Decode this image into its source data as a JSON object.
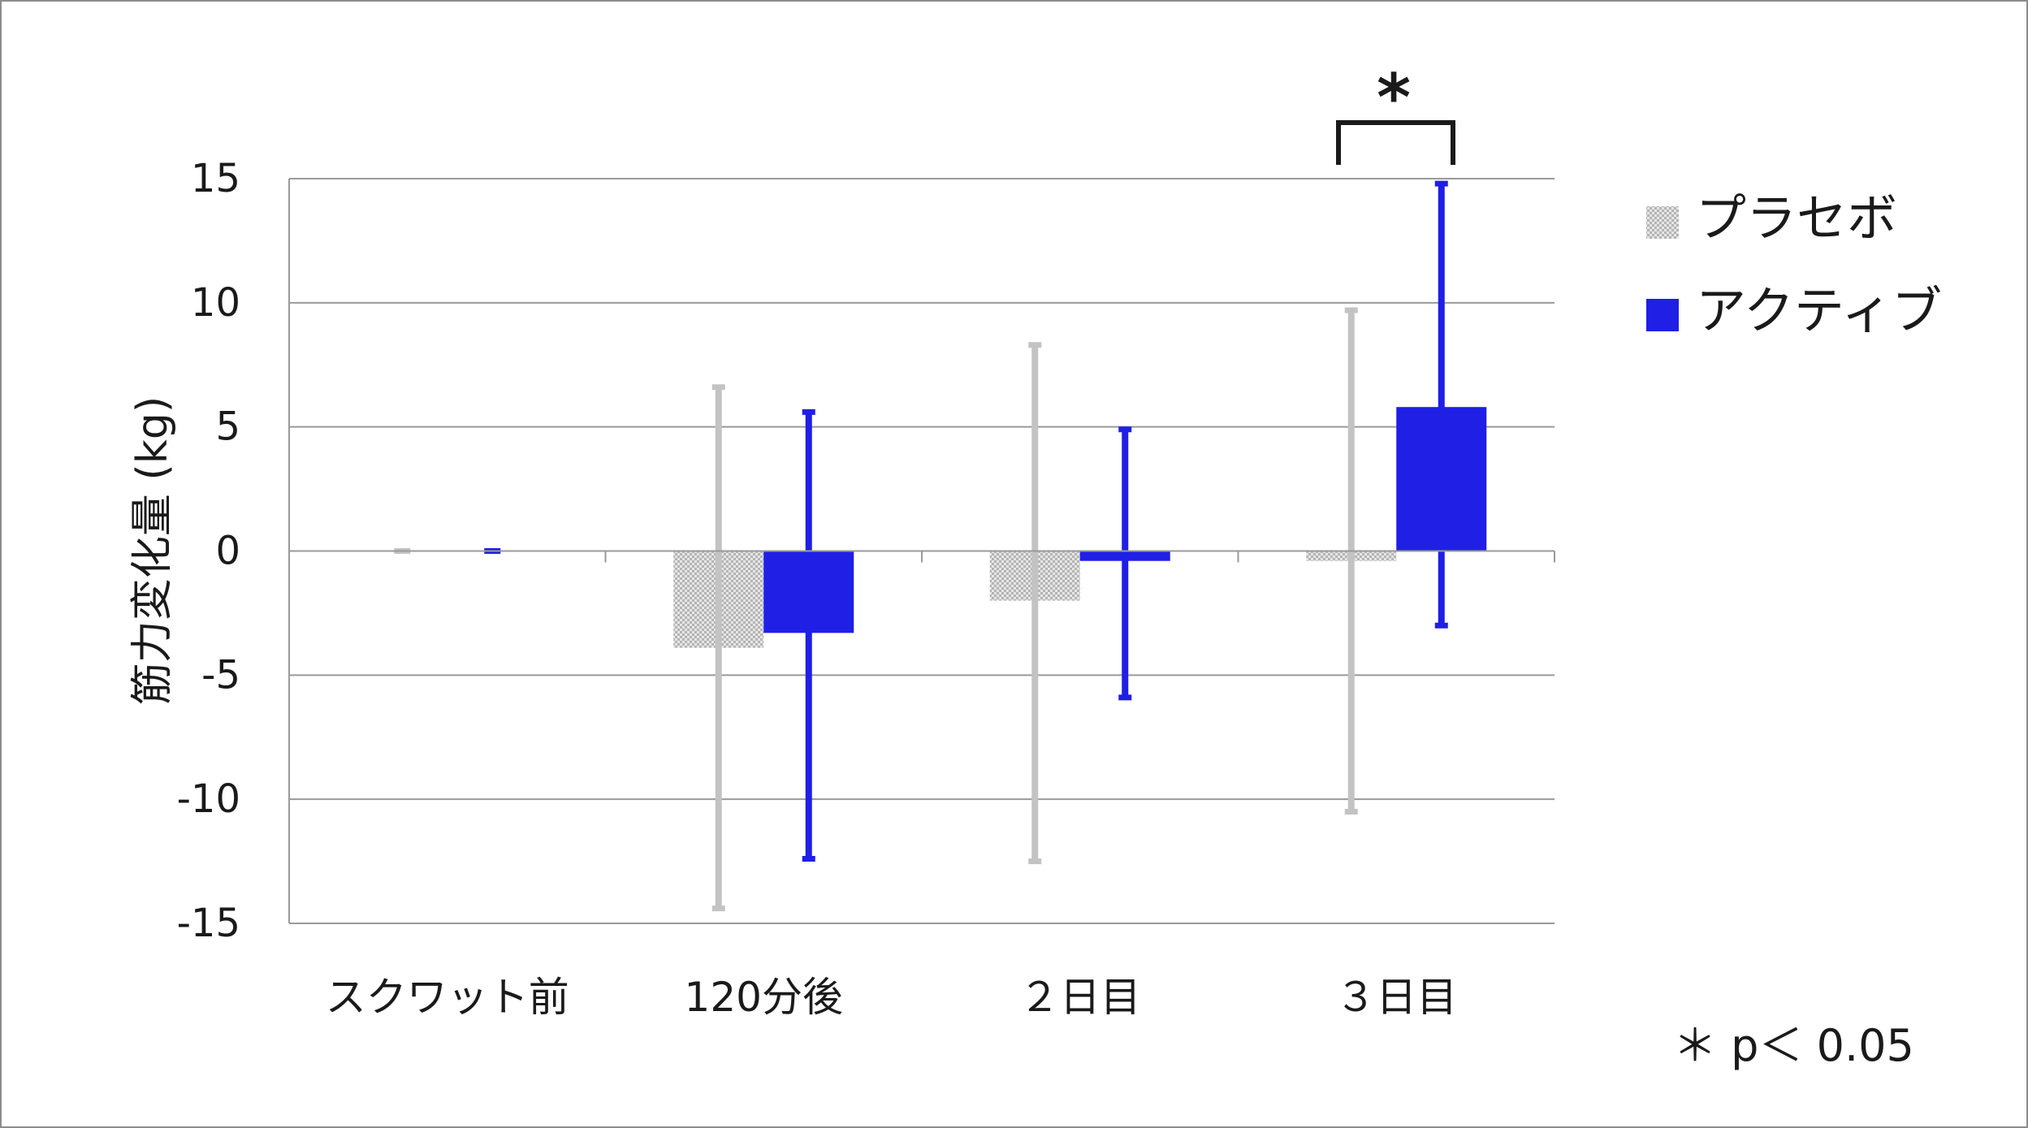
{
  "chart_data": {
    "type": "bar",
    "ylabel": "筋力変化量 (kg)",
    "ylim": [
      -15,
      15
    ],
    "yticks": [
      "15",
      "10",
      "5",
      "0",
      "-5",
      "-10",
      "-15"
    ],
    "categories": [
      "スクワット前",
      "120分後",
      "２日目",
      "３日目"
    ],
    "series": [
      {
        "name": "プラセボ",
        "color": "#c8c8c8",
        "values": [
          0,
          -3.9,
          -2.0,
          -0.4
        ],
        "error_low": [
          0,
          -14.4,
          -12.5,
          -10.5
        ],
        "error_high": [
          0,
          6.6,
          8.3,
          9.7
        ]
      },
      {
        "name": "アクティブ",
        "color": "#1f1fe6",
        "values": [
          0,
          -3.3,
          -0.4,
          5.8
        ],
        "error_low": [
          0,
          -12.4,
          -5.9,
          -3.0
        ],
        "error_high": [
          0,
          5.6,
          4.9,
          14.8
        ]
      }
    ],
    "significance": {
      "category_index": 3,
      "mark": "*"
    },
    "note": "＊ p＜ 0.05",
    "grid": true,
    "legend_position": "right"
  }
}
